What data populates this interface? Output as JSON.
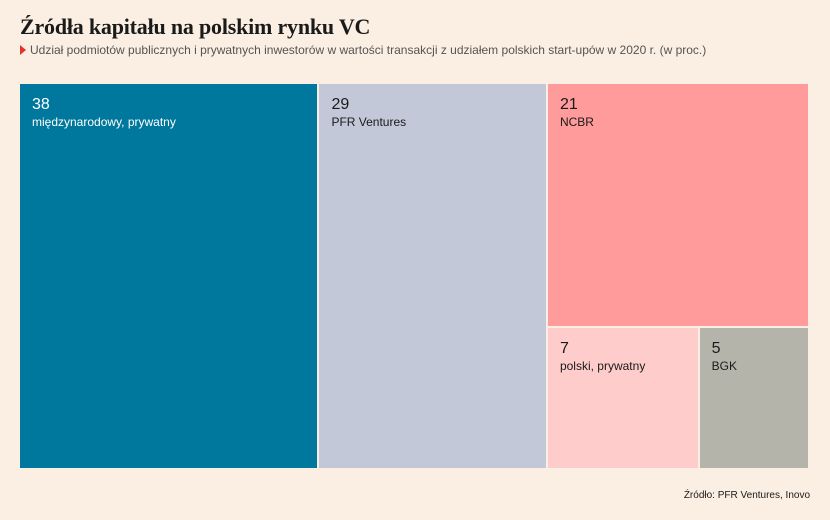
{
  "header": {
    "title": "Źródła kapitału na polskim rynku VC",
    "subtitle": "Udział podmiotów publicznych i prywatnych inwestorów w wartości transakcji z udziałem polskich start-upów w 2020 r. (w proc.)"
  },
  "source": "Źródło: PFR Ventures, Inovo",
  "chart_data": {
    "type": "treemap",
    "title": "Źródła kapitału na polskim rynku VC",
    "subtitle": "Udział podmiotów publicznych i prywatnych inwestorów w wartości transakcji z udziałem polskich start-upów w 2020 r. (w proc.)",
    "unit": "proc.",
    "items": [
      {
        "label": "międzynarodowy, prywatny",
        "value": 38,
        "color": "#00779c",
        "text_color": "#ffffff"
      },
      {
        "label": "PFR Ventures",
        "value": 29,
        "color": "#c2c8d8",
        "text_color": "#1a1a1a"
      },
      {
        "label": "NCBR",
        "value": 21,
        "color": "#ff9b9b",
        "text_color": "#1a1a1a"
      },
      {
        "label": "polski, prywatny",
        "value": 7,
        "color": "#ffcccc",
        "text_color": "#1a1a1a"
      },
      {
        "label": "BGK",
        "value": 5,
        "color": "#b5b4ab",
        "text_color": "#1a1a1a"
      }
    ]
  }
}
